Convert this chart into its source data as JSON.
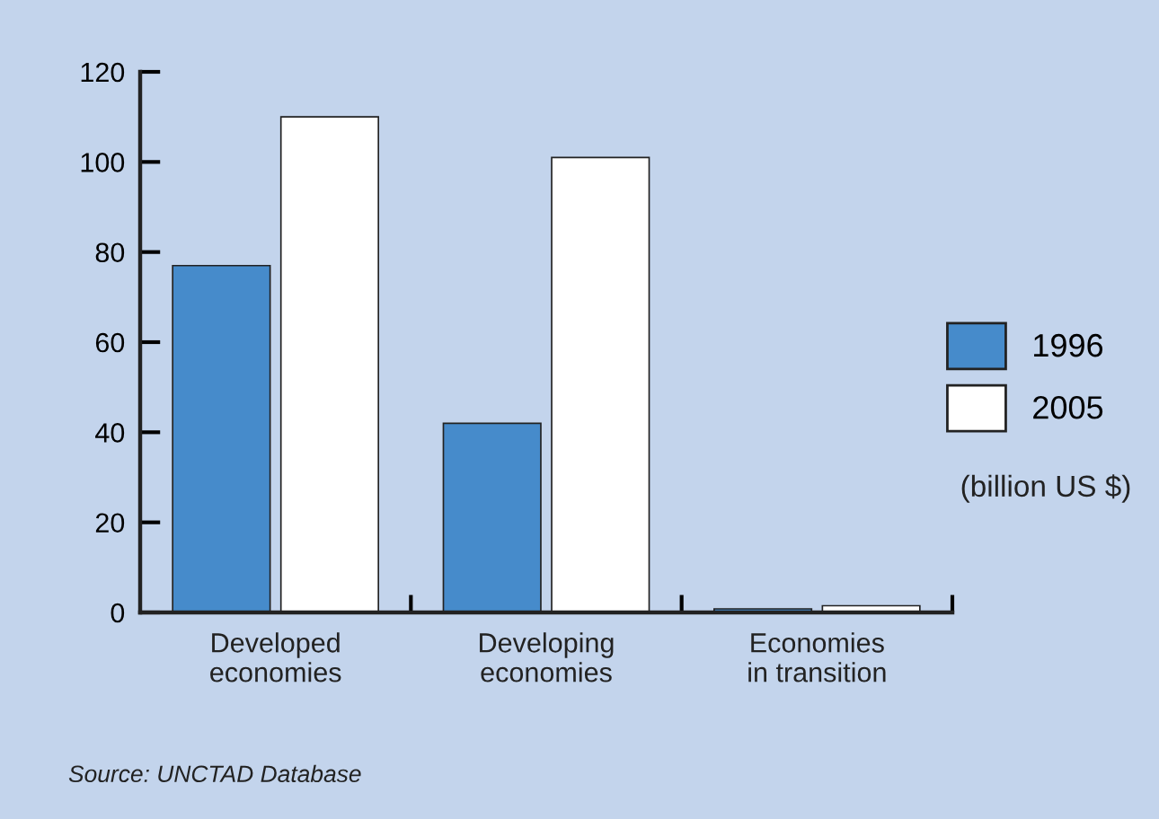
{
  "chart_data": {
    "type": "bar",
    "categories": [
      "Developed\neconomies",
      "Developing\neconomies",
      "Economies\nin transition"
    ],
    "series": [
      {
        "name": "1996",
        "color": "#468bcb",
        "values": [
          77,
          42,
          0.8
        ]
      },
      {
        "name": "2005",
        "color": "#ffffff",
        "values": [
          110,
          101,
          1.5
        ]
      }
    ],
    "ylim": [
      0,
      120
    ],
    "yticks": [
      0,
      20,
      40,
      60,
      80,
      100,
      120
    ],
    "grid": false,
    "legend": "right",
    "annotations": [
      "(billion US $)",
      "Source: UNCTAD Database"
    ]
  }
}
